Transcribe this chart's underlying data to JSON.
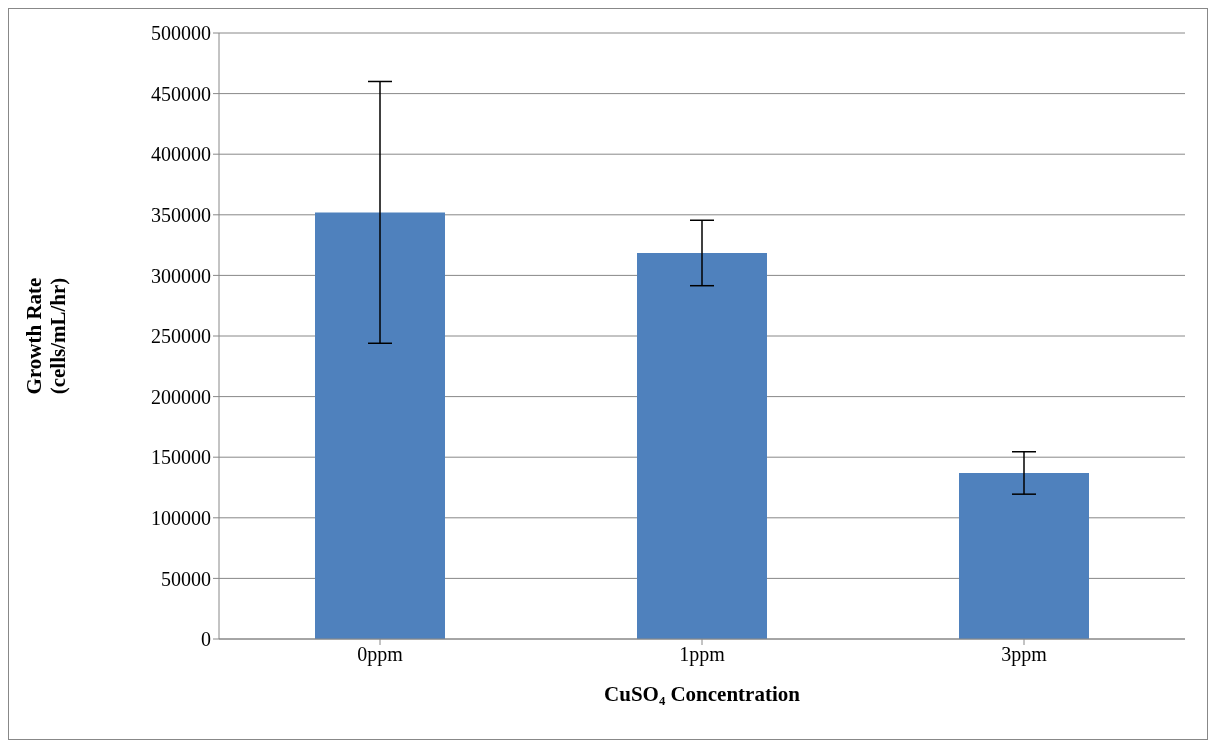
{
  "chart_data": {
    "type": "bar",
    "xlabel": "CuSO₄ Concentration",
    "ylabel": "Growth Rate\n(cells/mL/hr)",
    "categories": [
      "0ppm",
      "1ppm",
      "3ppm"
    ],
    "values": [
      352000,
      318500,
      137000
    ],
    "errors": [
      108000,
      27000,
      17500
    ],
    "color": "#4f81bd",
    "ylim": [
      0,
      500000
    ],
    "yticks": [
      0,
      50000,
      100000,
      150000,
      200000,
      250000,
      300000,
      350000,
      400000,
      450000,
      500000
    ],
    "grid": "y",
    "legend": false
  }
}
